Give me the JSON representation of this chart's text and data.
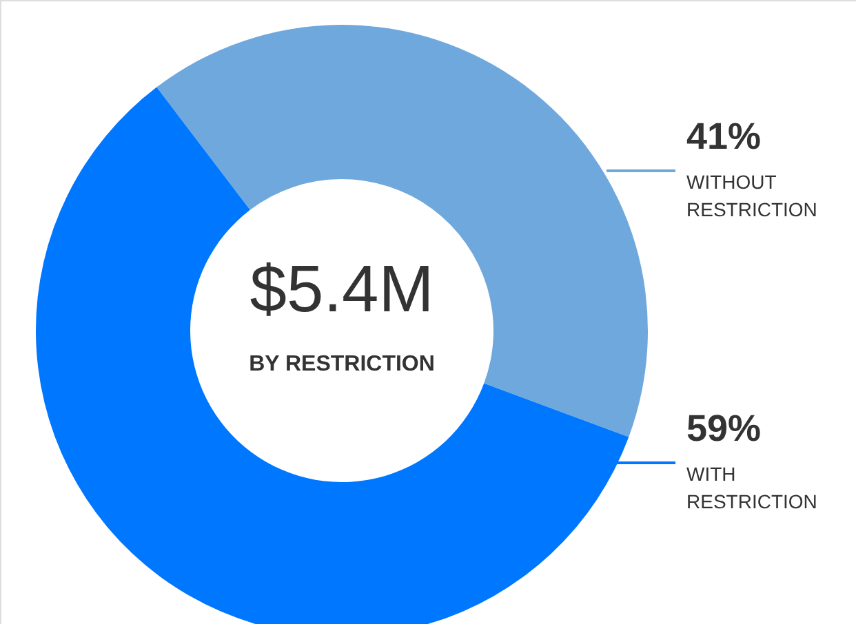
{
  "chart_data": {
    "type": "donut",
    "categories": [
      "WITHOUT RESTRICTION",
      "WITH RESTRICTION"
    ],
    "values": [
      41,
      59
    ],
    "colors": [
      "#6fa8dc",
      "#0077ff"
    ],
    "value_labels": [
      "41%",
      "59%"
    ],
    "annotations": [
      "$5.4M",
      "BY RESTRICTION"
    ]
  }
}
